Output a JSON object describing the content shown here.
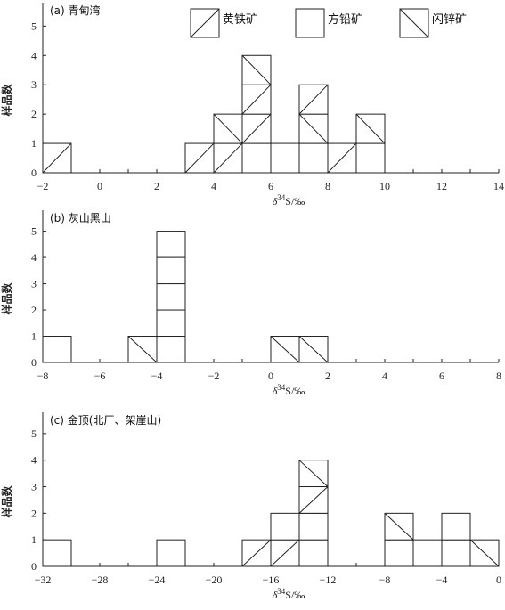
{
  "legend": {
    "items": [
      {
        "label": "黄铁矿",
        "pattern": "slash"
      },
      {
        "label": "方铅矿",
        "pattern": "blank"
      },
      {
        "label": "闪锌矿",
        "pattern": "backslash"
      }
    ]
  },
  "chart_data": [
    {
      "type": "histogram",
      "title": "(a) 青甸湾",
      "xlabel": "δ34S/‰",
      "ylabel": "样品数",
      "xlim": [
        -2,
        14
      ],
      "ylim": [
        0,
        5
      ],
      "xticks": [
        -2,
        0,
        2,
        4,
        6,
        8,
        10,
        12,
        14
      ],
      "yticks": [
        0,
        1,
        2,
        3,
        4,
        5
      ],
      "bin_width": 1,
      "stacks": [
        {
          "x": [
            -2,
            -1
          ],
          "cells": [
            "slash"
          ]
        },
        {
          "x": [
            3,
            4
          ],
          "cells": [
            "slash"
          ]
        },
        {
          "x": [
            4,
            5
          ],
          "cells": [
            "slash",
            "backslash"
          ]
        },
        {
          "x": [
            5,
            6
          ],
          "cells": [
            "blank",
            "slash",
            "slash",
            "backslash"
          ]
        },
        {
          "x": [
            6,
            7
          ],
          "cells": [
            "blank"
          ]
        },
        {
          "x": [
            7,
            8
          ],
          "cells": [
            "blank",
            "backslash",
            "slash"
          ]
        },
        {
          "x": [
            8,
            9
          ],
          "cells": [
            "slash"
          ]
        },
        {
          "x": [
            9,
            10
          ],
          "cells": [
            "blank",
            "backslash"
          ]
        }
      ]
    },
    {
      "type": "histogram",
      "title": "(b) 灰山黑山",
      "xlabel": "δ34S/‰",
      "ylabel": "样品数",
      "xlim": [
        -8,
        8
      ],
      "ylim": [
        0,
        5
      ],
      "xticks": [
        -8,
        -6,
        -4,
        -2,
        0,
        2,
        4,
        6,
        8
      ],
      "yticks": [
        0,
        1,
        2,
        3,
        4,
        5
      ],
      "bin_width": 1,
      "stacks": [
        {
          "x": [
            -8,
            -7
          ],
          "cells": [
            "blank"
          ]
        },
        {
          "x": [
            -5,
            -4
          ],
          "cells": [
            "backslash"
          ]
        },
        {
          "x": [
            -4,
            -3
          ],
          "cells": [
            "blank",
            "blank",
            "blank",
            "blank",
            "blank"
          ]
        },
        {
          "x": [
            0,
            1
          ],
          "cells": [
            "backslash"
          ]
        },
        {
          "x": [
            1,
            2
          ],
          "cells": [
            "backslash"
          ]
        }
      ]
    },
    {
      "type": "histogram",
      "title": "(c) 金顶(北厂、架崖山)",
      "xlabel": "δ34S/‰",
      "ylabel": "样品数",
      "xlim": [
        -32,
        0
      ],
      "ylim": [
        0,
        5
      ],
      "xticks": [
        -32,
        -28,
        -24,
        -20,
        -16,
        -12,
        -8,
        -4,
        0
      ],
      "yticks": [
        0,
        1,
        2,
        3,
        4,
        5
      ],
      "bin_width": 2,
      "stacks": [
        {
          "x": [
            -32,
            -30
          ],
          "cells": [
            "blank"
          ]
        },
        {
          "x": [
            -24,
            -22
          ],
          "cells": [
            "blank"
          ]
        },
        {
          "x": [
            -18,
            -16
          ],
          "cells": [
            "slash"
          ]
        },
        {
          "x": [
            -16,
            -14
          ],
          "cells": [
            "slash",
            "blank"
          ]
        },
        {
          "x": [
            -14,
            -12
          ],
          "cells": [
            "blank",
            "blank",
            "slash",
            "backslash"
          ]
        },
        {
          "x": [
            -8,
            -6
          ],
          "cells": [
            "blank",
            "backslash"
          ]
        },
        {
          "x": [
            -6,
            -4
          ],
          "cells": [
            "blank"
          ]
        },
        {
          "x": [
            -4,
            -2
          ],
          "cells": [
            "blank",
            "blank"
          ]
        },
        {
          "x": [
            -2,
            0
          ],
          "cells": [
            "backslash"
          ]
        }
      ]
    }
  ]
}
